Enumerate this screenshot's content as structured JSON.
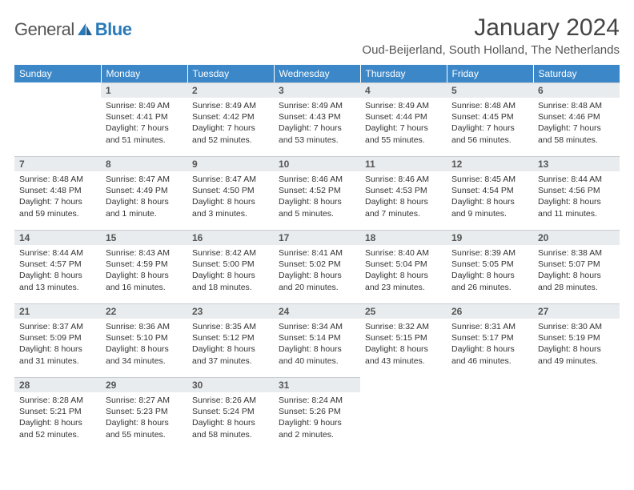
{
  "logo": {
    "part1": "General",
    "part2": "Blue"
  },
  "title": "January 2024",
  "location": "Oud-Beijerland, South Holland, The Netherlands",
  "colors": {
    "header_bg": "#3b87c8",
    "header_text": "#ffffff",
    "daynum_bg": "#e9ecef",
    "daynum_border": "#c9cdd2",
    "body_text": "#333333"
  },
  "weekdays": [
    "Sunday",
    "Monday",
    "Tuesday",
    "Wednesday",
    "Thursday",
    "Friday",
    "Saturday"
  ],
  "weeks": [
    [
      null,
      {
        "n": "1",
        "sr": "8:49 AM",
        "ss": "4:41 PM",
        "dl": "7 hours and 51 minutes."
      },
      {
        "n": "2",
        "sr": "8:49 AM",
        "ss": "4:42 PM",
        "dl": "7 hours and 52 minutes."
      },
      {
        "n": "3",
        "sr": "8:49 AM",
        "ss": "4:43 PM",
        "dl": "7 hours and 53 minutes."
      },
      {
        "n": "4",
        "sr": "8:49 AM",
        "ss": "4:44 PM",
        "dl": "7 hours and 55 minutes."
      },
      {
        "n": "5",
        "sr": "8:48 AM",
        "ss": "4:45 PM",
        "dl": "7 hours and 56 minutes."
      },
      {
        "n": "6",
        "sr": "8:48 AM",
        "ss": "4:46 PM",
        "dl": "7 hours and 58 minutes."
      }
    ],
    [
      {
        "n": "7",
        "sr": "8:48 AM",
        "ss": "4:48 PM",
        "dl": "7 hours and 59 minutes."
      },
      {
        "n": "8",
        "sr": "8:47 AM",
        "ss": "4:49 PM",
        "dl": "8 hours and 1 minute."
      },
      {
        "n": "9",
        "sr": "8:47 AM",
        "ss": "4:50 PM",
        "dl": "8 hours and 3 minutes."
      },
      {
        "n": "10",
        "sr": "8:46 AM",
        "ss": "4:52 PM",
        "dl": "8 hours and 5 minutes."
      },
      {
        "n": "11",
        "sr": "8:46 AM",
        "ss": "4:53 PM",
        "dl": "8 hours and 7 minutes."
      },
      {
        "n": "12",
        "sr": "8:45 AM",
        "ss": "4:54 PM",
        "dl": "8 hours and 9 minutes."
      },
      {
        "n": "13",
        "sr": "8:44 AM",
        "ss": "4:56 PM",
        "dl": "8 hours and 11 minutes."
      }
    ],
    [
      {
        "n": "14",
        "sr": "8:44 AM",
        "ss": "4:57 PM",
        "dl": "8 hours and 13 minutes."
      },
      {
        "n": "15",
        "sr": "8:43 AM",
        "ss": "4:59 PM",
        "dl": "8 hours and 16 minutes."
      },
      {
        "n": "16",
        "sr": "8:42 AM",
        "ss": "5:00 PM",
        "dl": "8 hours and 18 minutes."
      },
      {
        "n": "17",
        "sr": "8:41 AM",
        "ss": "5:02 PM",
        "dl": "8 hours and 20 minutes."
      },
      {
        "n": "18",
        "sr": "8:40 AM",
        "ss": "5:04 PM",
        "dl": "8 hours and 23 minutes."
      },
      {
        "n": "19",
        "sr": "8:39 AM",
        "ss": "5:05 PM",
        "dl": "8 hours and 26 minutes."
      },
      {
        "n": "20",
        "sr": "8:38 AM",
        "ss": "5:07 PM",
        "dl": "8 hours and 28 minutes."
      }
    ],
    [
      {
        "n": "21",
        "sr": "8:37 AM",
        "ss": "5:09 PM",
        "dl": "8 hours and 31 minutes."
      },
      {
        "n": "22",
        "sr": "8:36 AM",
        "ss": "5:10 PM",
        "dl": "8 hours and 34 minutes."
      },
      {
        "n": "23",
        "sr": "8:35 AM",
        "ss": "5:12 PM",
        "dl": "8 hours and 37 minutes."
      },
      {
        "n": "24",
        "sr": "8:34 AM",
        "ss": "5:14 PM",
        "dl": "8 hours and 40 minutes."
      },
      {
        "n": "25",
        "sr": "8:32 AM",
        "ss": "5:15 PM",
        "dl": "8 hours and 43 minutes."
      },
      {
        "n": "26",
        "sr": "8:31 AM",
        "ss": "5:17 PM",
        "dl": "8 hours and 46 minutes."
      },
      {
        "n": "27",
        "sr": "8:30 AM",
        "ss": "5:19 PM",
        "dl": "8 hours and 49 minutes."
      }
    ],
    [
      {
        "n": "28",
        "sr": "8:28 AM",
        "ss": "5:21 PM",
        "dl": "8 hours and 52 minutes."
      },
      {
        "n": "29",
        "sr": "8:27 AM",
        "ss": "5:23 PM",
        "dl": "8 hours and 55 minutes."
      },
      {
        "n": "30",
        "sr": "8:26 AM",
        "ss": "5:24 PM",
        "dl": "8 hours and 58 minutes."
      },
      {
        "n": "31",
        "sr": "8:24 AM",
        "ss": "5:26 PM",
        "dl": "9 hours and 2 minutes."
      },
      null,
      null,
      null
    ]
  ]
}
